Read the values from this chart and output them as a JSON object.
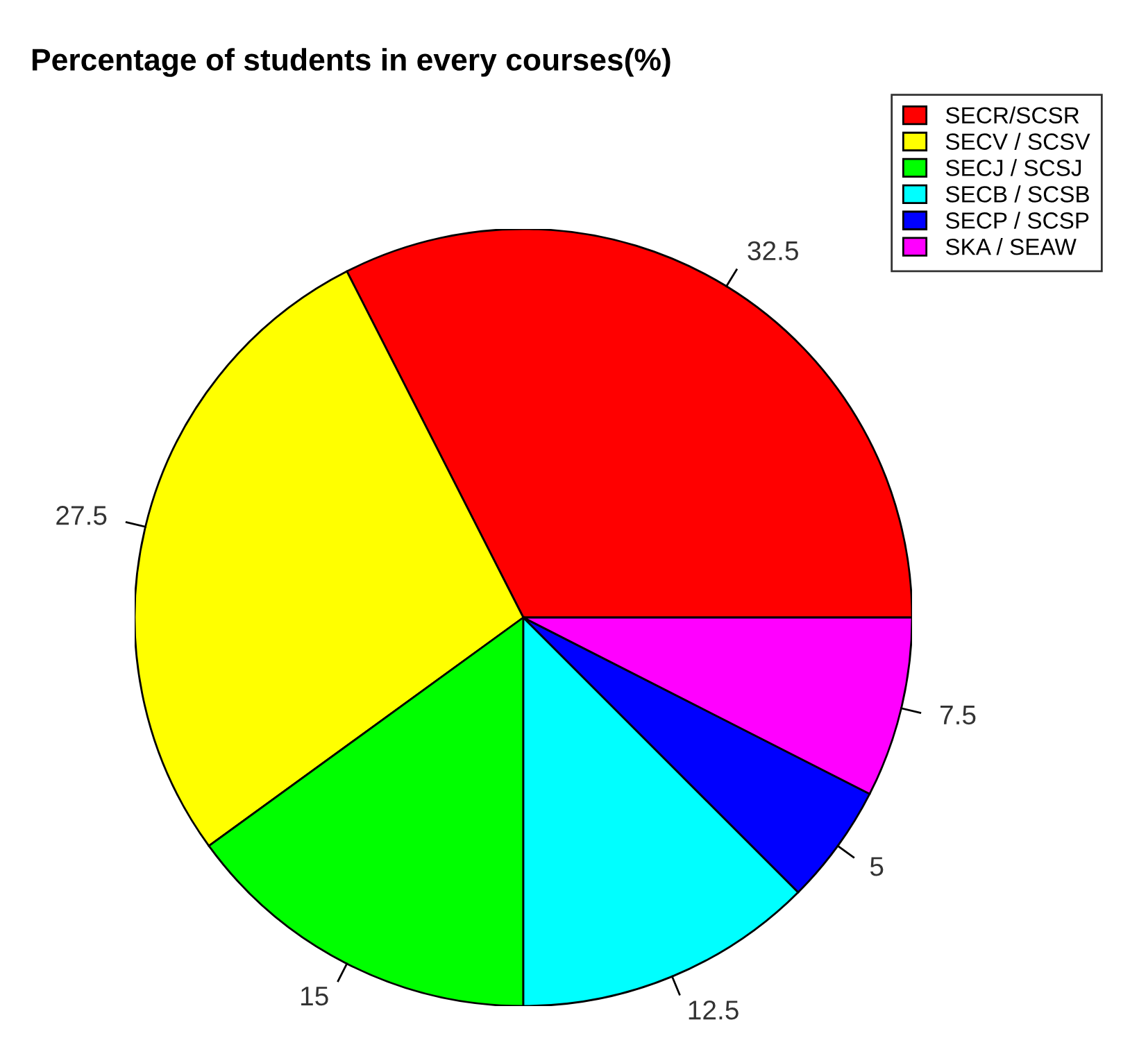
{
  "chart_data": {
    "type": "pie",
    "title": "Percentage of students in every courses(%)",
    "categories": [
      "SECR/SCSR",
      "SECV / SCSV",
      "SECJ / SCSJ",
      "SECB / SCSB",
      "SECP / SCSP",
      "SKA / SEAW"
    ],
    "values": [
      32.5,
      27.5,
      15,
      12.5,
      5,
      7.5
    ],
    "colors": [
      "#ff0000",
      "#ffff00",
      "#00ff00",
      "#00ffff",
      "#0000ff",
      "#ff00ff"
    ],
    "data_labels": true,
    "legend": "top right"
  }
}
